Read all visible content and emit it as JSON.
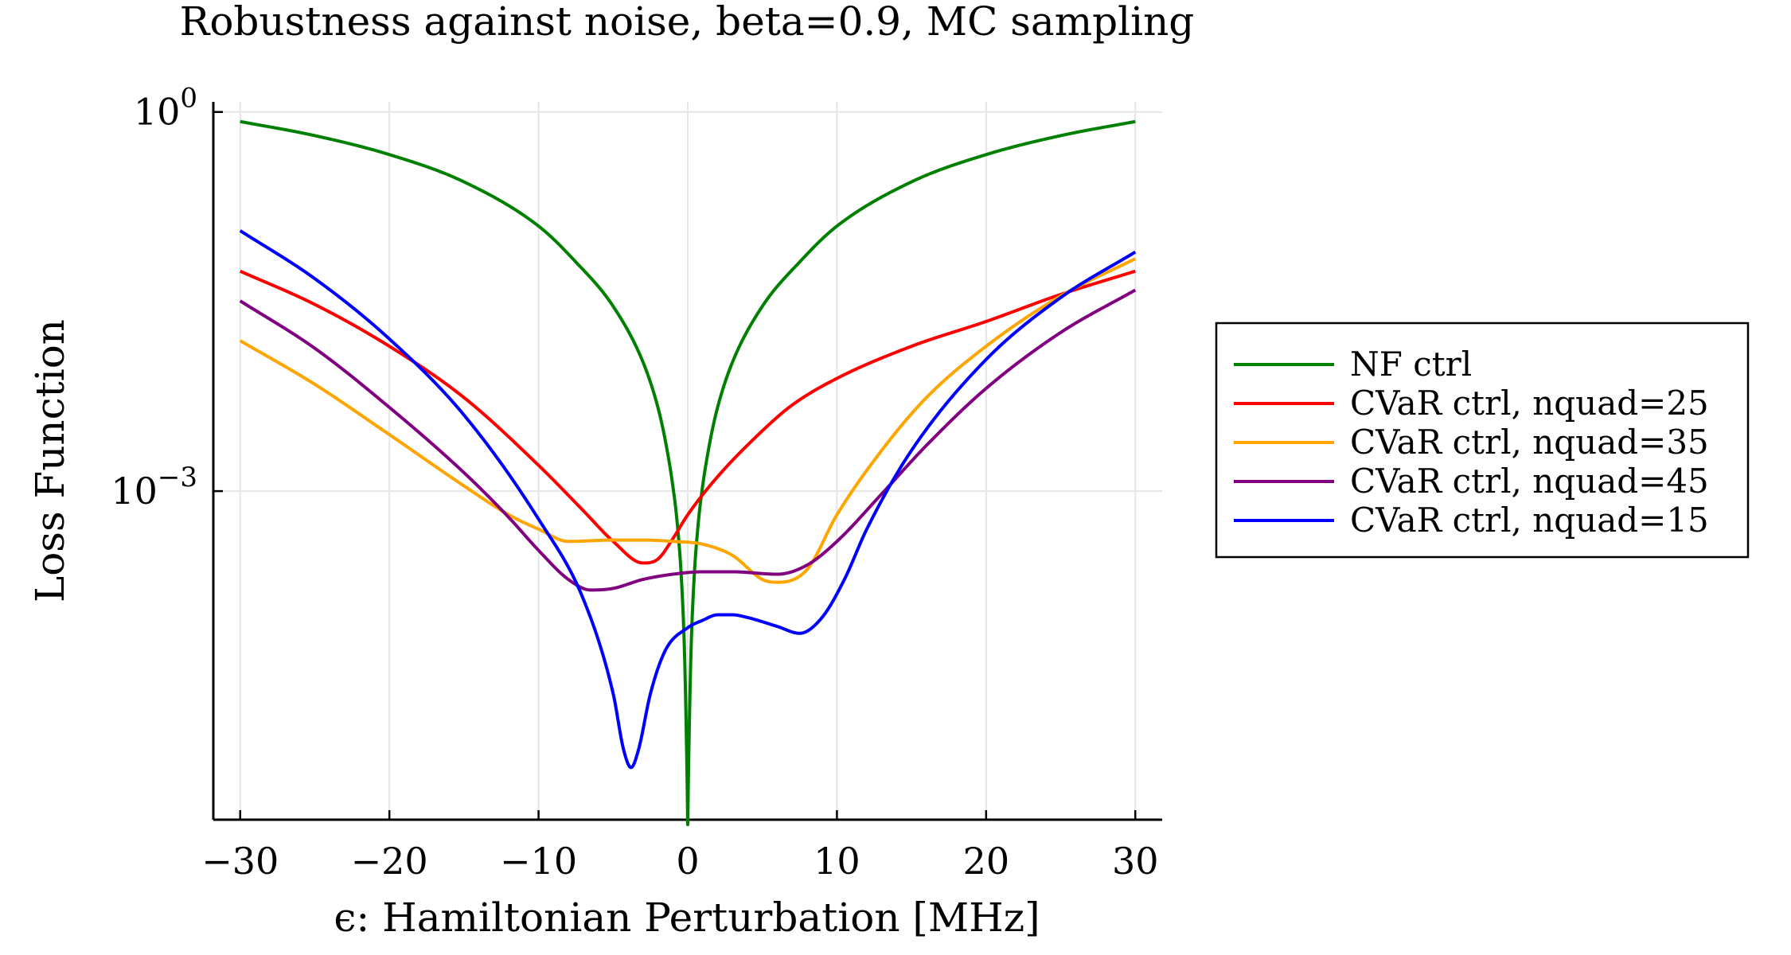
{
  "chart_data": {
    "type": "line",
    "title": "Robustness against noise, beta=0.9, MC sampling",
    "xlabel": "ϵ: Hamiltonian Perturbation [MHz]",
    "ylabel": "Loss Function",
    "xlim": [
      -31.8,
      31.8
    ],
    "ylim_log10": [
      -5.6,
      0.08
    ],
    "yscale": "log",
    "grid": true,
    "legend_position": "right-outside",
    "xticks": [
      {
        "value": -30,
        "label": "−30"
      },
      {
        "value": -20,
        "label": "−20"
      },
      {
        "value": -10,
        "label": "−10"
      },
      {
        "value": 0,
        "label": "0"
      },
      {
        "value": 10,
        "label": "10"
      },
      {
        "value": 20,
        "label": "20"
      },
      {
        "value": 30,
        "label": "30"
      }
    ],
    "yticks": [
      {
        "value": 1,
        "label_base": "10",
        "label_exp": "0"
      },
      {
        "value": 0.001,
        "label_base": "10",
        "label_exp": "−3"
      }
    ],
    "series": [
      {
        "name": "NF ctrl",
        "color": "#008000",
        "x": [
          -30,
          -25,
          -20,
          -15,
          -10,
          -7.5,
          -5,
          -3,
          -2,
          -1.5,
          -1,
          -0.7,
          -0.4,
          -0.2,
          -0.05,
          0,
          0.05,
          0.2,
          0.4,
          0.7,
          1,
          1.5,
          2,
          3,
          5,
          7.5,
          10,
          15,
          20,
          25,
          30
        ],
        "y": [
          0.84,
          0.65,
          0.46,
          0.28,
          0.125,
          0.065,
          0.029,
          0.0105,
          0.0046,
          0.0025,
          0.0011,
          0.00055,
          0.00018,
          4.5e-05,
          6e-06,
          2.3e-06,
          6e-06,
          4.5e-05,
          0.00018,
          0.00055,
          0.0011,
          0.0025,
          0.0046,
          0.0105,
          0.029,
          0.065,
          0.125,
          0.28,
          0.46,
          0.65,
          0.84
        ]
      },
      {
        "name": "CVaR ctrl, nquad=25",
        "color": "#ff0000",
        "x": [
          -30,
          -25,
          -20,
          -15,
          -10,
          -7,
          -5,
          -3,
          -2,
          -1,
          0,
          2,
          5,
          7,
          10,
          15,
          20,
          25,
          30
        ],
        "y": [
          0.055,
          0.03,
          0.014,
          0.0055,
          0.0016,
          0.0007,
          0.0004,
          0.00027,
          0.00029,
          0.00042,
          0.00065,
          0.0013,
          0.003,
          0.0048,
          0.0078,
          0.014,
          0.022,
          0.036,
          0.055
        ]
      },
      {
        "name": "CVaR ctrl, nquad=35",
        "color": "#ffa500",
        "x": [
          -30,
          -25,
          -20,
          -15,
          -12,
          -10,
          -8,
          -5,
          -3,
          -1,
          1,
          3,
          5,
          6,
          8,
          10,
          13,
          16,
          20,
          25,
          30
        ],
        "y": [
          0.0155,
          0.007,
          0.0028,
          0.0011,
          0.00065,
          0.0005,
          0.0004,
          0.00041,
          0.00041,
          0.0004,
          0.00038,
          0.00031,
          0.0002,
          0.00019,
          0.00024,
          0.00065,
          0.0021,
          0.0055,
          0.014,
          0.035,
          0.069
        ]
      },
      {
        "name": "CVaR ctrl, nquad=45",
        "color": "#800080",
        "x": [
          -30,
          -25,
          -20,
          -15,
          -12,
          -10,
          -8,
          -6.5,
          -5,
          -3,
          -1,
          1,
          3,
          6,
          8,
          10,
          13,
          16,
          20,
          25,
          30
        ],
        "y": [
          0.032,
          0.0135,
          0.0046,
          0.0014,
          0.00062,
          0.00034,
          0.0002,
          0.000165,
          0.00017,
          0.0002,
          0.00022,
          0.00023,
          0.00023,
          0.00022,
          0.00026,
          0.0004,
          0.00095,
          0.0023,
          0.0065,
          0.018,
          0.039
        ]
      },
      {
        "name": "CVaR ctrl, nquad=15",
        "color": "#0000ff",
        "x": [
          -30,
          -25,
          -20,
          -15,
          -10,
          -7,
          -5,
          -4.3,
          -3.8,
          -3.3,
          -2.5,
          -1.5,
          0,
          1,
          2,
          3,
          4,
          6,
          7.5,
          9,
          10.5,
          12,
          15,
          20,
          25,
          30
        ],
        "y": [
          0.115,
          0.048,
          0.016,
          0.004,
          0.0006,
          0.00014,
          2.5e-05,
          9e-06,
          6.5e-06,
          9e-06,
          2.5e-05,
          5.5e-05,
          8.3e-05,
          9.5e-05,
          0.000105,
          0.000105,
          0.0001,
          8.5e-05,
          7.5e-05,
          0.0001,
          0.0002,
          0.0005,
          0.0021,
          0.011,
          0.034,
          0.078
        ]
      }
    ]
  }
}
